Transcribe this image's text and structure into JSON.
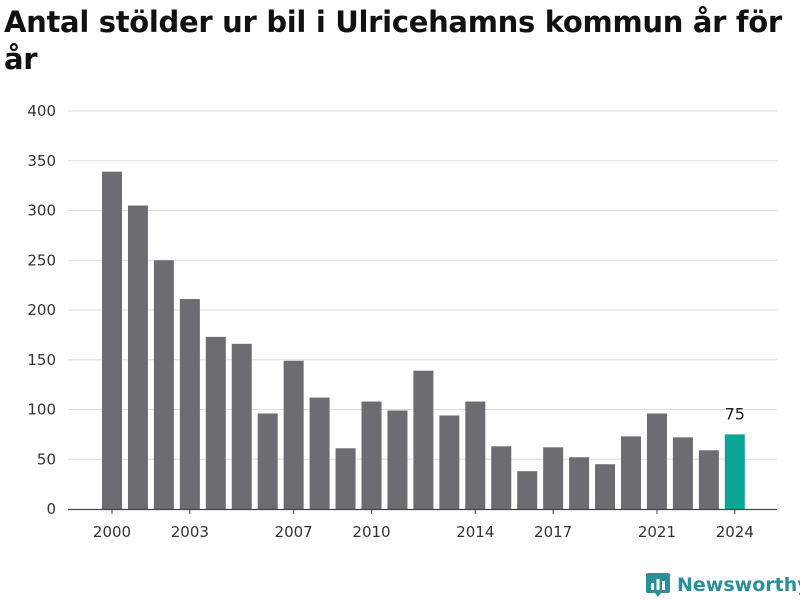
{
  "title": "Antal stölder ur bil i Ulricehamns kommun år för år",
  "brand": "Newsworthy",
  "colors": {
    "bar": "#6d6c71",
    "highlight": "#0ba595",
    "grid": "#dddddd",
    "brand": "#2a8f96"
  },
  "chart_data": {
    "type": "bar",
    "title": "Antal stölder ur bil i Ulricehamns kommun år för år",
    "xlabel": "",
    "ylabel": "",
    "ylim": [
      0,
      400
    ],
    "yticks": [
      0,
      50,
      100,
      150,
      200,
      250,
      300,
      350,
      400
    ],
    "xticks": [
      "2000",
      "2003",
      "2007",
      "2010",
      "2014",
      "2017",
      "2021",
      "2024"
    ],
    "grid": true,
    "categories": [
      "2000",
      "2001",
      "2002",
      "2003",
      "2004",
      "2005",
      "2006",
      "2007",
      "2008",
      "2009",
      "2010",
      "2011",
      "2012",
      "2013",
      "2014",
      "2015",
      "2016",
      "2017",
      "2018",
      "2019",
      "2020",
      "2021",
      "2022",
      "2023",
      "2024"
    ],
    "values": [
      339,
      305,
      250,
      211,
      173,
      166,
      96,
      149,
      112,
      61,
      108,
      99,
      139,
      94,
      108,
      63,
      38,
      62,
      52,
      45,
      73,
      96,
      72,
      59,
      75
    ],
    "highlight_index": 24,
    "data_labels": [
      {
        "category": "2024",
        "text": "75"
      }
    ]
  }
}
